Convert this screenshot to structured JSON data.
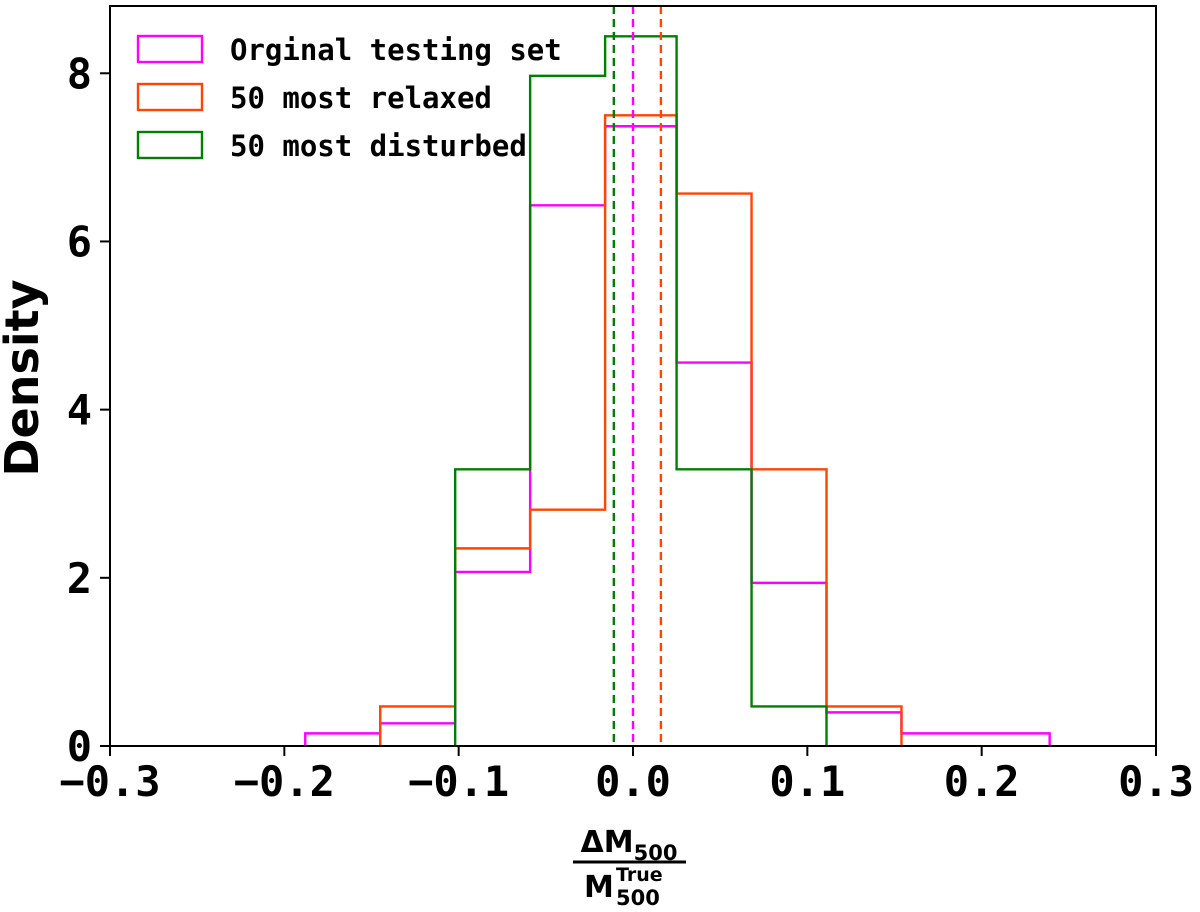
{
  "chart_data": {
    "type": "histogram",
    "xlabel": {
      "numerator": {
        "base": "ΔM",
        "sub": "500"
      },
      "denominator": {
        "base": "M",
        "sub": "500",
        "sup": "True"
      }
    },
    "ylabel": "Density",
    "xlim": [
      -0.3,
      0.3
    ],
    "ylim": [
      0,
      8.8
    ],
    "xticks": [
      -0.3,
      -0.2,
      -0.1,
      0.0,
      0.1,
      0.2,
      0.3
    ],
    "xtick_labels": [
      "−0.3",
      "−0.2",
      "−0.1",
      "0.0",
      "0.1",
      "0.2",
      "0.3"
    ],
    "yticks": [
      0,
      2,
      4,
      6,
      8
    ],
    "ytick_labels": [
      "0",
      "2",
      "4",
      "6",
      "8"
    ],
    "grid": false,
    "legend_position": "top-left",
    "series": [
      {
        "name": "Orginal testing set",
        "color": "#ff00ff",
        "edges": [
          -0.188,
          -0.145,
          -0.102,
          -0.059,
          -0.016,
          0.025,
          0.068,
          0.111,
          0.154,
          0.197,
          0.239
        ],
        "values": [
          0.15,
          0.27,
          2.07,
          6.43,
          7.37,
          4.56,
          1.94,
          0.4,
          0.15,
          0.15
        ],
        "mean": 0.0
      },
      {
        "name": "50 most relaxed",
        "color": "#ff4500",
        "edges": [
          -0.145,
          -0.102,
          -0.059,
          -0.016,
          0.025,
          0.068,
          0.111,
          0.154
        ],
        "values": [
          0.47,
          2.35,
          2.81,
          7.5,
          6.57,
          3.29,
          0.47
        ],
        "mean": 0.016
      },
      {
        "name": "50 most disturbed",
        "color": "#008000",
        "edges": [
          -0.102,
          -0.059,
          -0.016,
          0.025,
          0.068,
          0.111
        ],
        "values": [
          3.29,
          7.97,
          8.44,
          3.29,
          0.47
        ],
        "mean": -0.011
      }
    ]
  }
}
